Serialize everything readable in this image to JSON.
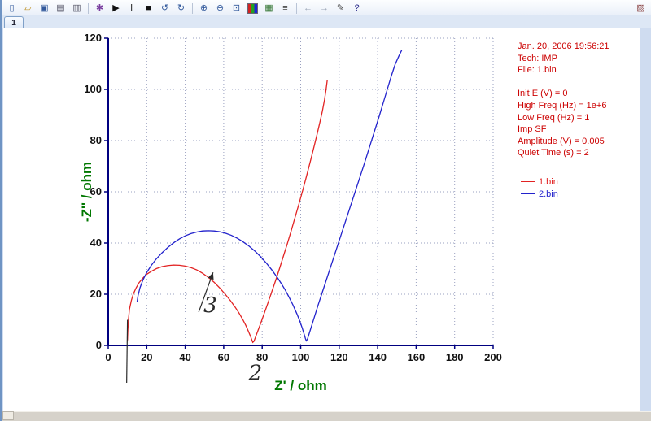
{
  "tab": {
    "label": "1"
  },
  "toolbar": {
    "icons": [
      {
        "name": "new",
        "glyph": "▯",
        "color": "#335a9c"
      },
      {
        "name": "open",
        "glyph": "▱",
        "color": "#b8860b"
      },
      {
        "name": "save",
        "glyph": "▣",
        "color": "#335a9c"
      },
      {
        "name": "print",
        "glyph": "▤",
        "color": "#556"
      },
      {
        "name": "copy",
        "glyph": "▥",
        "color": "#556"
      },
      {
        "type": "sep"
      },
      {
        "name": "setup",
        "glyph": "✱",
        "color": "#7a3fa0"
      },
      {
        "name": "run",
        "glyph": "▶",
        "color": "#111"
      },
      {
        "name": "pause",
        "glyph": "‖",
        "color": "#111"
      },
      {
        "name": "stop",
        "glyph": "■",
        "color": "#111"
      },
      {
        "name": "reverse",
        "glyph": "↺",
        "color": "#335a9c"
      },
      {
        "name": "repeat",
        "glyph": "↻",
        "color": "#335a9c"
      },
      {
        "type": "sep"
      },
      {
        "name": "zoom-in",
        "glyph": "⊕",
        "color": "#335a9c"
      },
      {
        "name": "zoom-out",
        "glyph": "⊖",
        "color": "#335a9c"
      },
      {
        "name": "zoom-window",
        "glyph": "⊡",
        "color": "#335a9c"
      },
      {
        "name": "overlay-colors",
        "type": "rgb"
      },
      {
        "name": "grid",
        "glyph": "▦",
        "color": "#3a7a3a"
      },
      {
        "name": "data-list",
        "glyph": "≡",
        "color": "#444"
      },
      {
        "type": "sep"
      },
      {
        "name": "prev",
        "glyph": "←",
        "color": "#99a4b4"
      },
      {
        "name": "next",
        "glyph": "→",
        "color": "#99a4b4"
      },
      {
        "name": "annotate",
        "glyph": "✎",
        "color": "#444"
      },
      {
        "name": "help",
        "glyph": "?",
        "color": "#2a2a8a"
      },
      {
        "type": "spacer"
      },
      {
        "name": "panel",
        "glyph": "▨",
        "color": "#8a4444"
      }
    ]
  },
  "info_panel": {
    "color": "#cc0000",
    "lines": [
      "Jan. 20, 2006   19:56:21",
      "Tech: IMP",
      "File: 1.bin",
      "",
      "Init E (V) = 0",
      "High Freq (Hz) = 1e+6",
      "Low Freq (Hz) = 1",
      "Imp SF",
      "Amplitude (V) = 0.005",
      "Quiet Time (s) = 2"
    ]
  },
  "legend": [
    {
      "label": "1.bin",
      "color": "#e22222"
    },
    {
      "label": "2.bin",
      "color": "#2222cc"
    }
  ],
  "chart_data": {
    "type": "line",
    "title": "",
    "xlabel": "Z' / ohm",
    "ylabel": "-Z'' / ohm",
    "xlim": [
      0,
      200
    ],
    "ylim": [
      0,
      120
    ],
    "xticks": [
      0,
      20,
      40,
      60,
      80,
      100,
      120,
      140,
      160,
      180,
      200
    ],
    "yticks": [
      0,
      20,
      40,
      60,
      80,
      100,
      120
    ],
    "grid": "dotted",
    "grid_color": "#9aa0c0",
    "axis_color": "#000080",
    "tick_label_color": "#111111",
    "label_color": "#007700",
    "legend_position": "right",
    "series": [
      {
        "name": "1.bin",
        "color": "#e22222",
        "points": [
          [
            10,
            2
          ],
          [
            10.2,
            6
          ],
          [
            10.5,
            10
          ],
          [
            11,
            14
          ],
          [
            12,
            17.5
          ],
          [
            13,
            20
          ],
          [
            14.5,
            22.5
          ],
          [
            16,
            24.5
          ],
          [
            18,
            26.3
          ],
          [
            20,
            27.8
          ],
          [
            22.5,
            29
          ],
          [
            25,
            30
          ],
          [
            28,
            30.8
          ],
          [
            31,
            31.2
          ],
          [
            34,
            31.4
          ],
          [
            37,
            31.3
          ],
          [
            40,
            31
          ],
          [
            43,
            30.4
          ],
          [
            46,
            29.5
          ],
          [
            49,
            28.2
          ],
          [
            52,
            26.6
          ],
          [
            55,
            24.7
          ],
          [
            58,
            22.4
          ],
          [
            61,
            19.8
          ],
          [
            63.5,
            17.5
          ],
          [
            66,
            14.9
          ],
          [
            68,
            12.6
          ],
          [
            70,
            10
          ],
          [
            71.5,
            7.8
          ],
          [
            72.8,
            5.6
          ],
          [
            73.8,
            3.8
          ],
          [
            74.6,
            2.2
          ],
          [
            75.1,
            1.2
          ],
          [
            75.7,
            1.6
          ],
          [
            76.5,
            3.2
          ],
          [
            78,
            6.2
          ],
          [
            79.5,
            9.2
          ],
          [
            81,
            12.4
          ],
          [
            83,
            16.6
          ],
          [
            85,
            21
          ],
          [
            87,
            25.4
          ],
          [
            89,
            30
          ],
          [
            91,
            34.8
          ],
          [
            93,
            39.6
          ],
          [
            95,
            44.6
          ],
          [
            97,
            49.8
          ],
          [
            99,
            55
          ],
          [
            101,
            60.4
          ],
          [
            103,
            66
          ],
          [
            105,
            71.8
          ],
          [
            107,
            77.8
          ],
          [
            108.5,
            82.4
          ],
          [
            110,
            87.2
          ],
          [
            111.3,
            91.6
          ],
          [
            112.4,
            96
          ],
          [
            113.2,
            100
          ],
          [
            113.8,
            103.5
          ]
        ]
      },
      {
        "name": "2.bin",
        "color": "#2222cc",
        "points": [
          [
            15,
            17
          ],
          [
            15.5,
            19.5
          ],
          [
            16.5,
            22.5
          ],
          [
            18,
            25.5
          ],
          [
            20,
            28.5
          ],
          [
            22.5,
            31.4
          ],
          [
            25,
            33.8
          ],
          [
            28,
            36.2
          ],
          [
            31,
            38.3
          ],
          [
            34,
            40.1
          ],
          [
            37,
            41.6
          ],
          [
            40,
            42.8
          ],
          [
            43,
            43.7
          ],
          [
            46,
            44.3
          ],
          [
            49,
            44.7
          ],
          [
            52,
            44.8
          ],
          [
            55,
            44.7
          ],
          [
            58,
            44.4
          ],
          [
            61,
            43.8
          ],
          [
            64,
            43
          ],
          [
            67,
            41.9
          ],
          [
            70,
            40.5
          ],
          [
            73,
            38.9
          ],
          [
            76,
            37
          ],
          [
            79,
            34.8
          ],
          [
            82,
            32.3
          ],
          [
            85,
            29.5
          ],
          [
            88,
            26.4
          ],
          [
            90,
            24.1
          ],
          [
            92,
            21.6
          ],
          [
            94,
            18.8
          ],
          [
            96,
            15.8
          ],
          [
            98,
            12.4
          ],
          [
            99.5,
            9.6
          ],
          [
            100.8,
            6.8
          ],
          [
            101.8,
            4.4
          ],
          [
            102.5,
            2.6
          ],
          [
            102.9,
            1.8
          ],
          [
            103.5,
            2.4
          ],
          [
            104.5,
            4.8
          ],
          [
            106,
            8.4
          ],
          [
            107.5,
            12
          ],
          [
            109,
            15.6
          ],
          [
            111,
            20.2
          ],
          [
            113,
            24.8
          ],
          [
            115,
            29.4
          ],
          [
            117,
            34
          ],
          [
            119,
            38.6
          ],
          [
            121,
            43.2
          ],
          [
            123,
            47.8
          ],
          [
            125,
            52.4
          ],
          [
            127,
            57
          ],
          [
            129,
            61.6
          ],
          [
            131,
            66.2
          ],
          [
            133,
            70.8
          ],
          [
            135,
            75.6
          ],
          [
            137,
            80.4
          ],
          [
            139,
            85.2
          ],
          [
            141,
            90
          ],
          [
            143,
            95
          ],
          [
            145,
            100
          ],
          [
            147,
            105
          ],
          [
            149,
            109.6
          ],
          [
            151,
            113
          ],
          [
            152.5,
            115.3
          ]
        ]
      }
    ],
    "annotations": {
      "ink_color": "#2b2b2b",
      "vertical_line": {
        "x": 10,
        "y_top": 10,
        "y_bottom": -14.6
      },
      "arrow": {
        "from": [
          47,
          13
        ],
        "to": [
          54.5,
          28.5
        ]
      },
      "texts": [
        {
          "text": "3",
          "x": 49.5,
          "y": 13
        },
        {
          "text": "2",
          "x": 73,
          "y": -13.5
        }
      ]
    }
  }
}
